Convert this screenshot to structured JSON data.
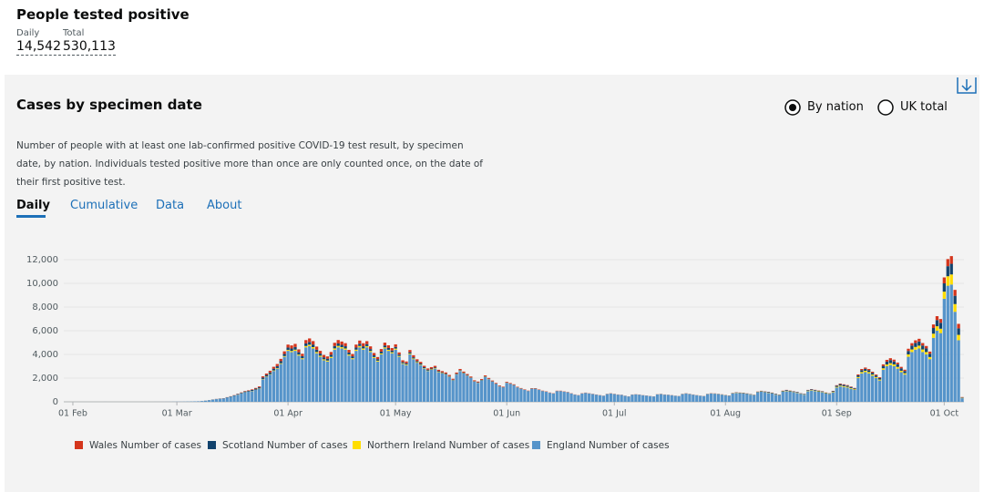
{
  "header": {
    "title": "People tested positive",
    "metrics": [
      {
        "label": "Daily",
        "value": "14,542"
      },
      {
        "label": "Total",
        "value": "530,113"
      }
    ]
  },
  "card": {
    "title": "Cases by specimen date",
    "options": [
      "By nation",
      "UK total"
    ],
    "description": "Number of people with at least one lab-confirmed positive COVID-19 test result, by specimen date, by nation. Individuals tested positive more than once are only counted once, on the date of their first positive test.",
    "tabs": [
      "Daily",
      "Cumulative",
      "Data",
      "About"
    ]
  },
  "chart_data": {
    "type": "stacked-bar",
    "categories": [
      "01 Feb",
      null,
      null,
      null,
      null,
      null,
      null,
      null,
      null,
      null,
      null,
      null,
      null,
      null,
      null,
      null,
      null,
      null,
      null,
      null,
      null,
      null,
      null,
      null,
      null,
      null,
      null,
      null,
      null,
      "01 Mar",
      null,
      null,
      null,
      null,
      null,
      null,
      null,
      null,
      null,
      null,
      null,
      null,
      null,
      null,
      null,
      null,
      null,
      null,
      null,
      null,
      null,
      null,
      null,
      null,
      null,
      null,
      null,
      null,
      null,
      null,
      "01 Apr",
      null,
      null,
      null,
      null,
      null,
      null,
      null,
      null,
      null,
      null,
      null,
      null,
      null,
      null,
      null,
      null,
      null,
      null,
      null,
      null,
      null,
      null,
      null,
      null,
      null,
      null,
      null,
      null,
      null,
      "01 May",
      null,
      null,
      null,
      null,
      null,
      null,
      null,
      null,
      null,
      null,
      null,
      null,
      null,
      null,
      null,
      null,
      null,
      null,
      null,
      null,
      null,
      null,
      null,
      null,
      null,
      null,
      null,
      null,
      null,
      null,
      "01 Jun",
      null,
      null,
      null,
      null,
      null,
      null,
      null,
      null,
      null,
      null,
      null,
      null,
      null,
      null,
      null,
      null,
      null,
      null,
      null,
      null,
      null,
      null,
      null,
      null,
      null,
      null,
      null,
      null,
      null,
      "01 Jul",
      null,
      null,
      null,
      null,
      null,
      null,
      null,
      null,
      null,
      null,
      null,
      null,
      null,
      null,
      null,
      null,
      null,
      null,
      null,
      null,
      null,
      null,
      null,
      null,
      null,
      null,
      null,
      null,
      null,
      null,
      "01 Aug",
      null,
      null,
      null,
      null,
      null,
      null,
      null,
      null,
      null,
      null,
      null,
      null,
      null,
      null,
      null,
      null,
      null,
      null,
      null,
      null,
      null,
      null,
      null,
      null,
      null,
      null,
      null,
      null,
      null,
      null,
      "01 Sep",
      null,
      null,
      null,
      null,
      null,
      null,
      null,
      null,
      null,
      null,
      null,
      null,
      null,
      null,
      null,
      null,
      null,
      null,
      null,
      null,
      null,
      null,
      null,
      null,
      null,
      null,
      null,
      null,
      null,
      "01 Oct",
      null,
      null,
      null,
      null,
      null
    ],
    "series": [
      {
        "name": "Wales Number of cases",
        "color": "#d4351c",
        "values": [
          0,
          0,
          0,
          0,
          0,
          0,
          0,
          0,
          0,
          0,
          0,
          0,
          0,
          0,
          0,
          0,
          0,
          0,
          0,
          0,
          0,
          0,
          0,
          0,
          0,
          0,
          0,
          0,
          0,
          0,
          0,
          0,
          0,
          0,
          0,
          1,
          1,
          2,
          3,
          5,
          6,
          8,
          10,
          12,
          15,
          20,
          25,
          30,
          35,
          40,
          50,
          60,
          70,
          100,
          120,
          140,
          160,
          180,
          200,
          220,
          250,
          260,
          270,
          240,
          200,
          280,
          300,
          290,
          260,
          230,
          200,
          190,
          230,
          270,
          290,
          280,
          260,
          220,
          200,
          250,
          270,
          260,
          250,
          230,
          200,
          180,
          220,
          240,
          230,
          210,
          220,
          180,
          150,
          150,
          190,
          170,
          150,
          140,
          120,
          110,
          120,
          130,
          110,
          100,
          95,
          90,
          80,
          95,
          100,
          90,
          85,
          80,
          70,
          65,
          70,
          80,
          70,
          60,
          55,
          50,
          45,
          60,
          55,
          50,
          45,
          40,
          35,
          30,
          35,
          35,
          30,
          28,
          25,
          22,
          20,
          25,
          25,
          22,
          20,
          18,
          15,
          14,
          18,
          18,
          16,
          15,
          14,
          12,
          11,
          14,
          15,
          14,
          13,
          12,
          10,
          9,
          12,
          12,
          11,
          10,
          10,
          9,
          8,
          12,
          12,
          11,
          10,
          10,
          9,
          8,
          12,
          13,
          12,
          11,
          10,
          9,
          8,
          12,
          14,
          13,
          12,
          12,
          10,
          10,
          14,
          15,
          14,
          14,
          12,
          11,
          10,
          16,
          17,
          16,
          15,
          14,
          12,
          11,
          18,
          19,
          18,
          17,
          16,
          14,
          12,
          20,
          22,
          21,
          20,
          18,
          16,
          14,
          25,
          40,
          50,
          48,
          45,
          40,
          35,
          80,
          100,
          105,
          100,
          90,
          80,
          70,
          130,
          150,
          160,
          155,
          140,
          120,
          110,
          190,
          210,
          220,
          230,
          210,
          200,
          180,
          300,
          330,
          320,
          500,
          600,
          650,
          500,
          380,
          30
        ]
      },
      {
        "name": "Scotland Number of cases",
        "color": "#12436d",
        "values": [
          0,
          0,
          0,
          0,
          0,
          0,
          0,
          0,
          0,
          0,
          0,
          0,
          0,
          0,
          0,
          0,
          0,
          0,
          0,
          0,
          0,
          0,
          0,
          0,
          0,
          0,
          0,
          0,
          0,
          0,
          0,
          0,
          1,
          1,
          2,
          3,
          5,
          8,
          10,
          12,
          15,
          18,
          20,
          25,
          30,
          35,
          40,
          50,
          60,
          70,
          80,
          90,
          100,
          120,
          130,
          140,
          150,
          160,
          170,
          180,
          200,
          210,
          220,
          200,
          180,
          220,
          230,
          220,
          200,
          180,
          170,
          160,
          180,
          200,
          210,
          200,
          190,
          170,
          160,
          180,
          190,
          180,
          170,
          160,
          140,
          130,
          150,
          160,
          150,
          140,
          140,
          120,
          100,
          100,
          110,
          100,
          90,
          85,
          80,
          70,
          70,
          65,
          60,
          60,
          55,
          50,
          45,
          50,
          45,
          40,
          40,
          35,
          30,
          30,
          35,
          30,
          28,
          25,
          22,
          20,
          20,
          20,
          18,
          18,
          15,
          15,
          12,
          10,
          12,
          12,
          10,
          10,
          8,
          8,
          6,
          8,
          8,
          7,
          6,
          5,
          5,
          4,
          5,
          5,
          4,
          4,
          3,
          3,
          3,
          4,
          4,
          4,
          4,
          3,
          3,
          3,
          4,
          4,
          4,
          3,
          3,
          3,
          3,
          5,
          5,
          5,
          5,
          4,
          4,
          4,
          6,
          6,
          6,
          5,
          5,
          5,
          4,
          6,
          8,
          8,
          8,
          10,
          12,
          14,
          20,
          25,
          30,
          40,
          35,
          30,
          25,
          30,
          40,
          45,
          50,
          45,
          40,
          35,
          45,
          60,
          55,
          50,
          45,
          40,
          35,
          50,
          60,
          55,
          50,
          45,
          40,
          35,
          60,
          100,
          120,
          110,
          100,
          90,
          80,
          140,
          160,
          170,
          160,
          150,
          130,
          120,
          200,
          240,
          260,
          250,
          230,
          210,
          190,
          290,
          320,
          340,
          350,
          330,
          310,
          280,
          480,
          520,
          500,
          700,
          850,
          900,
          700,
          550,
          40
        ]
      },
      {
        "name": "Northern Ireland Number of cases",
        "color": "#ffdd00",
        "values": [
          0,
          0,
          0,
          0,
          0,
          0,
          0,
          0,
          0,
          0,
          0,
          0,
          0,
          0,
          0,
          0,
          0,
          0,
          0,
          0,
          0,
          0,
          0,
          0,
          0,
          0,
          0,
          0,
          0,
          0,
          0,
          0,
          0,
          0,
          0,
          0,
          0,
          1,
          1,
          2,
          2,
          3,
          4,
          5,
          6,
          8,
          10,
          12,
          14,
          16,
          18,
          20,
          25,
          30,
          35,
          40,
          45,
          50,
          55,
          60,
          80,
          90,
          100,
          85,
          75,
          110,
          120,
          115,
          100,
          90,
          85,
          80,
          95,
          110,
          115,
          110,
          100,
          90,
          80,
          100,
          110,
          105,
          100,
          90,
          80,
          70,
          85,
          95,
          90,
          85,
          90,
          70,
          55,
          55,
          70,
          60,
          50,
          45,
          40,
          35,
          38,
          40,
          35,
          30,
          28,
          25,
          20,
          25,
          26,
          22,
          20,
          18,
          15,
          14,
          16,
          18,
          15,
          12,
          10,
          9,
          8,
          10,
          9,
          8,
          7,
          6,
          5,
          4,
          5,
          5,
          4,
          4,
          3,
          3,
          2,
          3,
          3,
          3,
          2,
          2,
          2,
          2,
          3,
          3,
          2,
          2,
          2,
          2,
          2,
          3,
          3,
          3,
          3,
          2,
          2,
          2,
          3,
          3,
          3,
          2,
          2,
          2,
          2,
          4,
          4,
          4,
          3,
          3,
          3,
          3,
          5,
          5,
          5,
          4,
          4,
          4,
          3,
          6,
          7,
          7,
          6,
          8,
          10,
          10,
          15,
          18,
          17,
          16,
          14,
          12,
          11,
          20,
          22,
          21,
          20,
          18,
          15,
          14,
          25,
          28,
          26,
          25,
          23,
          20,
          18,
          35,
          38,
          36,
          35,
          32,
          28,
          25,
          40,
          60,
          70,
          68,
          65,
          60,
          55,
          90,
          110,
          115,
          110,
          100,
          90,
          80,
          130,
          150,
          160,
          155,
          140,
          120,
          110,
          200,
          220,
          230,
          240,
          220,
          200,
          180,
          350,
          380,
          370,
          600,
          800,
          850,
          650,
          450,
          30
        ]
      },
      {
        "name": "England Number of cases",
        "color": "#5694ca",
        "values": [
          0,
          0,
          0,
          0,
          0,
          0,
          0,
          0,
          0,
          1,
          0,
          0,
          0,
          0,
          0,
          0,
          0,
          0,
          0,
          0,
          0,
          0,
          0,
          1,
          1,
          2,
          3,
          5,
          8,
          10,
          12,
          15,
          20,
          25,
          35,
          40,
          60,
          90,
          130,
          180,
          220,
          250,
          270,
          350,
          420,
          500,
          600,
          700,
          800,
          850,
          900,
          1000,
          1100,
          1900,
          2100,
          2300,
          2600,
          2800,
          3200,
          3800,
          4300,
          4200,
          4300,
          3900,
          3600,
          4600,
          4700,
          4500,
          4100,
          3800,
          3500,
          3400,
          3700,
          4400,
          4600,
          4500,
          4400,
          3900,
          3600,
          4300,
          4600,
          4400,
          4600,
          4200,
          3700,
          3400,
          4000,
          4500,
          4300,
          4100,
          4400,
          3800,
          3200,
          3100,
          4000,
          3600,
          3300,
          3100,
          2800,
          2600,
          2700,
          2800,
          2500,
          2400,
          2300,
          2100,
          1800,
          2300,
          2600,
          2400,
          2200,
          2000,
          1700,
          1600,
          1800,
          2100,
          1900,
          1700,
          1500,
          1300,
          1200,
          1600,
          1500,
          1400,
          1200,
          1100,
          1000,
          900,
          1100,
          1100,
          1000,
          900,
          850,
          750,
          700,
          900,
          900,
          850,
          800,
          700,
          600,
          550,
          700,
          750,
          700,
          650,
          600,
          550,
          500,
          650,
          700,
          650,
          600,
          580,
          500,
          450,
          600,
          620,
          600,
          550,
          520,
          480,
          450,
          620,
          650,
          600,
          580,
          550,
          500,
          480,
          650,
          700,
          650,
          600,
          550,
          500,
          480,
          650,
          700,
          680,
          650,
          600,
          550,
          500,
          700,
          750,
          720,
          700,
          650,
          600,
          550,
          800,
          850,
          800,
          750,
          700,
          600,
          550,
          850,
          900,
          850,
          800,
          750,
          650,
          600,
          900,
          950,
          900,
          850,
          800,
          700,
          650,
          800,
          1200,
          1300,
          1250,
          1200,
          1100,
          1000,
          2000,
          2400,
          2500,
          2400,
          2200,
          2000,
          1800,
          2700,
          3000,
          3100,
          3000,
          2800,
          2500,
          2300,
          3800,
          4200,
          4400,
          4500,
          4200,
          4000,
          3600,
          5400,
          6000,
          5800,
          8700,
          9800,
          9900,
          7600,
          5200,
          300
        ]
      }
    ],
    "ylim": [
      0,
      13000
    ],
    "yticks": [
      0,
      {
        "value": 2000,
        "label": "2,000"
      },
      {
        "value": 4000,
        "label": "4,000"
      },
      {
        "value": 6000,
        "label": "6,000"
      },
      {
        "value": 8000,
        "label": "8,000"
      },
      {
        "value": 10000,
        "label": "10,000"
      },
      {
        "value": 12000,
        "label": "12,000"
      }
    ],
    "grid": true
  }
}
